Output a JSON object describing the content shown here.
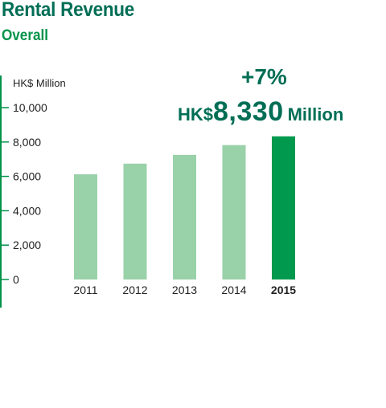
{
  "header": {
    "title": "Rental Revenue",
    "subtitle": "Overall"
  },
  "highlight": {
    "growth": "+7%",
    "currency": "HK$",
    "amount": "8,330",
    "unit": "Million"
  },
  "colors": {
    "title": "#006e55",
    "subtitle": "#00934a",
    "axis": "#00934a",
    "bar": "#99d1a9",
    "bar_highlight": "#00994d"
  },
  "chart_data": {
    "type": "bar",
    "categories": [
      "2011",
      "2012",
      "2013",
      "2014",
      "2015"
    ],
    "values": [
      6120,
      6740,
      7250,
      7820,
      8330
    ],
    "highlight_index": 4,
    "ylabel": "HK$ Million",
    "ylim": [
      0,
      10000
    ],
    "yticks": [
      "0",
      "2,000",
      "4,000",
      "6,000",
      "8,000",
      "10,000"
    ],
    "grid": false,
    "legend": "none"
  }
}
